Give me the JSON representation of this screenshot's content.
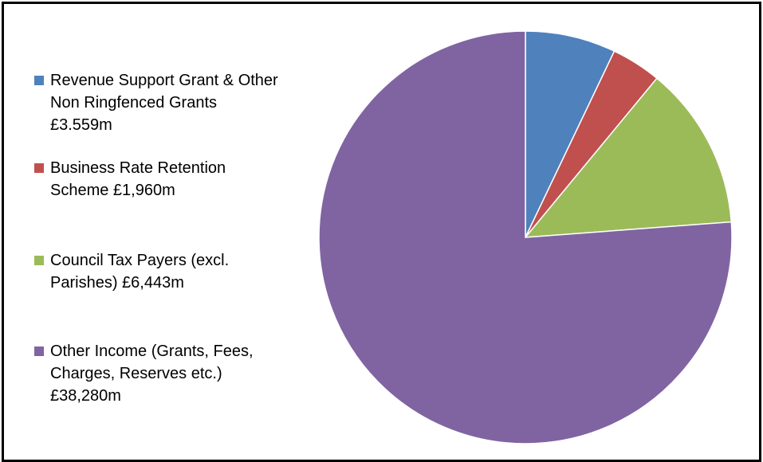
{
  "chart_data": {
    "type": "pie",
    "title": "",
    "slices": [
      {
        "label": "Revenue Support Grant & Other Non Ringfenced Grants £3.559m",
        "value": 3.559,
        "color": "#4F81BD"
      },
      {
        "label": "Business Rate Retention Scheme £1,960m",
        "value": 1.96,
        "color": "#C0504D"
      },
      {
        "label": "Council Tax Payers (excl. Parishes) £6,443m",
        "value": 6.443,
        "color": "#9BBB59"
      },
      {
        "label": "Other Income (Grants, Fees, Charges, Reserves etc.) £38,280m",
        "value": 38.28,
        "color": "#8064A2"
      }
    ],
    "legend_position": "left"
  },
  "legend": {
    "items": [
      {
        "label": "Revenue Support Grant & Other Non Ringfenced Grants £3.559m",
        "color": "#4F81BD"
      },
      {
        "label": "Business Rate Retention Scheme £1,960m",
        "color": "#C0504D"
      },
      {
        "label": "Council Tax Payers (excl. Parishes) £6,443m",
        "color": "#9BBB59"
      },
      {
        "label": "Other Income (Grants, Fees, Charges, Reserves etc.) £38,280m",
        "color": "#8064A2"
      }
    ]
  }
}
